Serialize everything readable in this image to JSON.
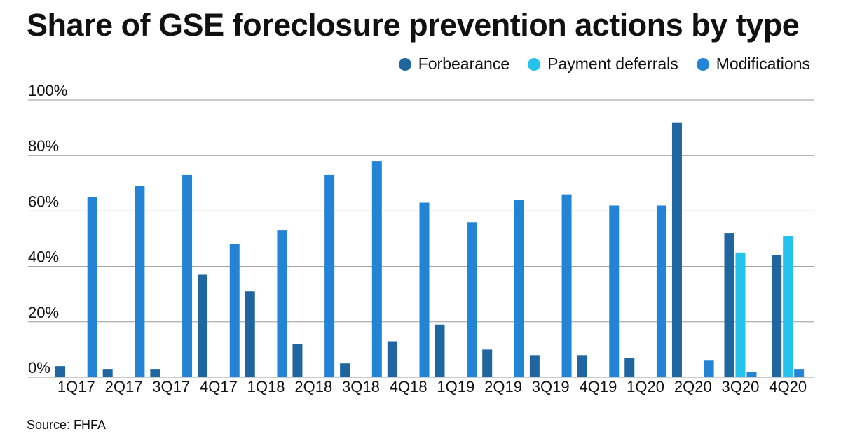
{
  "title": "Share of GSE foreclosure prevention actions by type",
  "source": "Source: FHFA",
  "legend": [
    {
      "name": "Forbearance",
      "color": "#1f66a0"
    },
    {
      "name": "Payment deferrals",
      "color": "#23c3ec"
    },
    {
      "name": "Modifications",
      "color": "#2384d6"
    }
  ],
  "chart_data": {
    "type": "bar",
    "title": "Share of GSE foreclosure prevention actions by type",
    "categories": [
      "1Q17",
      "2Q17",
      "3Q17",
      "4Q17",
      "1Q18",
      "2Q18",
      "3Q18",
      "4Q18",
      "1Q19",
      "2Q19",
      "3Q19",
      "4Q19",
      "1Q20",
      "2Q20",
      "3Q20",
      "4Q20"
    ],
    "series": [
      {
        "name": "Forbearance",
        "color": "#1f66a0",
        "values": [
          4,
          3,
          3,
          37,
          31,
          12,
          5,
          13,
          19,
          10,
          8,
          8,
          7,
          92,
          52,
          44
        ]
      },
      {
        "name": "Payment deferrals",
        "color": "#23c3ec",
        "values": [
          null,
          null,
          null,
          null,
          null,
          null,
          null,
          null,
          null,
          null,
          null,
          null,
          null,
          null,
          45,
          51
        ]
      },
      {
        "name": "Modifications",
        "color": "#2384d6",
        "values": [
          65,
          69,
          73,
          48,
          53,
          73,
          78,
          63,
          56,
          64,
          66,
          62,
          62,
          6,
          2,
          3
        ]
      }
    ],
    "yticks": [
      "0%",
      "20%",
      "40%",
      "60%",
      "80%",
      "100%"
    ],
    "ylim": [
      0,
      100
    ],
    "grid": true,
    "legend_position": "top-right"
  }
}
